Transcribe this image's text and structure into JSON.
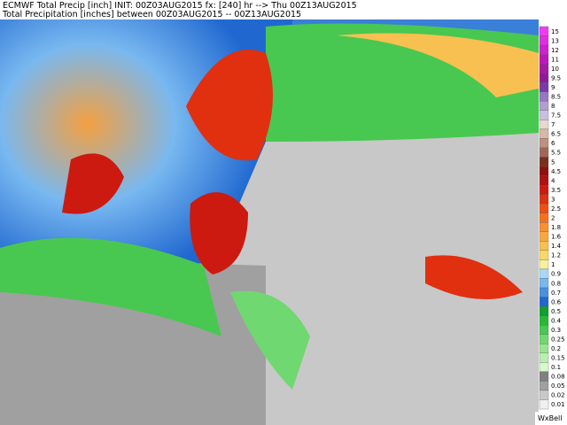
{
  "header": {
    "title": "ECMWF Total Precip [inch] INIT: 00Z03AUG2015 fx: [240] hr --> Thu 00Z13AUG2015",
    "subtitle": "Total Precipitation [inches] between 00Z03AUG2015 -- 00Z13AUG2015"
  },
  "legend": {
    "items": [
      {
        "label": "15",
        "color": "#f03cf0"
      },
      {
        "label": "13",
        "color": "#e02ee0"
      },
      {
        "label": "12",
        "color": "#d020d0"
      },
      {
        "label": "11",
        "color": "#bb18bb"
      },
      {
        "label": "10",
        "color": "#a818a8"
      },
      {
        "label": "9.5",
        "color": "#8c1c9c"
      },
      {
        "label": "9",
        "color": "#7a3aa8"
      },
      {
        "label": "8.5",
        "color": "#9678c0"
      },
      {
        "label": "8",
        "color": "#b0a0d2"
      },
      {
        "label": "7.5",
        "color": "#c8c0e0"
      },
      {
        "label": "7",
        "color": "#e8d8d0"
      },
      {
        "label": "6.5",
        "color": "#d8b8a8"
      },
      {
        "label": "6",
        "color": "#c09080"
      },
      {
        "label": "5.5",
        "color": "#a06858"
      },
      {
        "label": "5",
        "color": "#783020"
      },
      {
        "label": "4.5",
        "color": "#901010"
      },
      {
        "label": "4",
        "color": "#b01010"
      },
      {
        "label": "3.5",
        "color": "#cc1a10"
      },
      {
        "label": "3",
        "color": "#e03010"
      },
      {
        "label": "2.5",
        "color": "#ef5010"
      },
      {
        "label": "2",
        "color": "#f47020"
      },
      {
        "label": "1.8",
        "color": "#f89030"
      },
      {
        "label": "1.6",
        "color": "#f8a840"
      },
      {
        "label": "1.4",
        "color": "#f8c050"
      },
      {
        "label": "1.2",
        "color": "#f8d868"
      },
      {
        "label": "1",
        "color": "#f8f0a0"
      },
      {
        "label": "0.9",
        "color": "#a8d8f8"
      },
      {
        "label": "0.8",
        "color": "#78b8f0"
      },
      {
        "label": "0.7",
        "color": "#4890e0"
      },
      {
        "label": "0.6",
        "color": "#2068d0"
      },
      {
        "label": "0.5",
        "color": "#10a030"
      },
      {
        "label": "0.4",
        "color": "#28b838"
      },
      {
        "label": "0.3",
        "color": "#48c850"
      },
      {
        "label": "0.25",
        "color": "#70d870"
      },
      {
        "label": "0.2",
        "color": "#98e490"
      },
      {
        "label": "0.15",
        "color": "#b8f0b0"
      },
      {
        "label": "0.1",
        "color": "#d8f8d0"
      },
      {
        "label": "0.08",
        "color": "#808080"
      },
      {
        "label": "0.05",
        "color": "#a0a0a0"
      },
      {
        "label": "0.02",
        "color": "#c8c8c8"
      },
      {
        "label": "0.01",
        "color": "#f0f0f0"
      }
    ]
  },
  "watermark": "WxBell"
}
